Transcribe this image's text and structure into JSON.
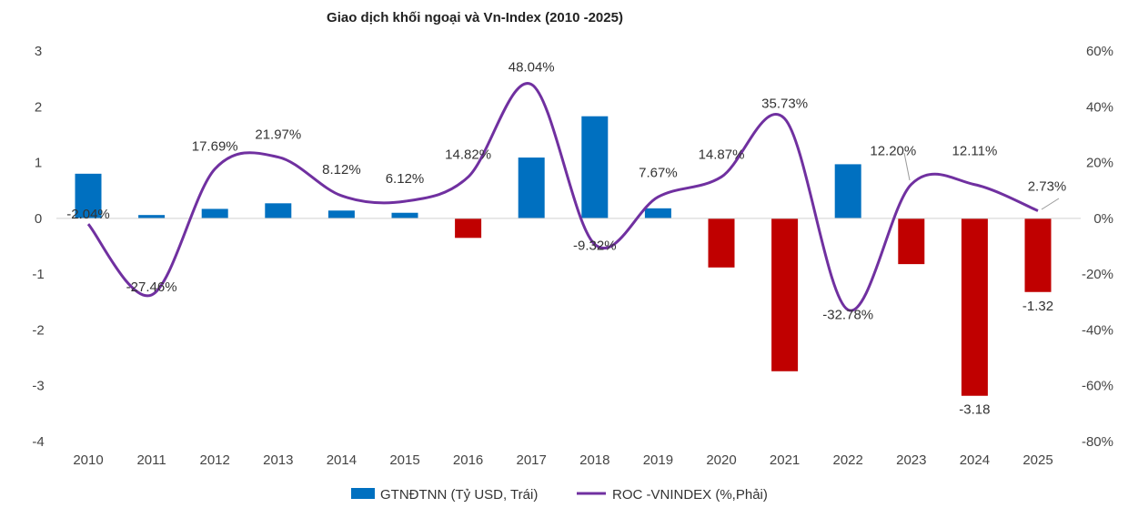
{
  "chart_data": {
    "type": "bar+line",
    "title": "Giao dịch khối ngoại và Vn-Index (2010 -2025)",
    "categories": [
      "2010",
      "2011",
      "2012",
      "2013",
      "2014",
      "2015",
      "2016",
      "2017",
      "2018",
      "2019",
      "2020",
      "2021",
      "2022",
      "2023",
      "2024",
      "2025"
    ],
    "series": [
      {
        "name": "GTNĐTNN (Tỷ USD, Trái)",
        "type": "bar",
        "axis": "left",
        "values": [
          0.8,
          0.06,
          0.17,
          0.27,
          0.14,
          0.1,
          -0.35,
          1.09,
          1.83,
          0.18,
          -0.88,
          -2.74,
          0.97,
          -0.82,
          -3.18,
          -1.32
        ],
        "labels": [
          "",
          "",
          "",
          "",
          "",
          "",
          "",
          "",
          "",
          "",
          "",
          "",
          "",
          "",
          "-3.18",
          "-1.32"
        ],
        "positive_color": "#0070C0",
        "negative_color": "#C00000"
      },
      {
        "name": "ROC -VNINDEX (%,Phải)",
        "type": "line",
        "axis": "right",
        "smooth": true,
        "values": [
          -2.04,
          -27.46,
          17.69,
          21.97,
          8.12,
          6.12,
          14.82,
          48.04,
          -9.32,
          7.67,
          14.87,
          35.73,
          -32.78,
          12.2,
          12.11,
          2.73
        ],
        "labels": [
          "-2.04%",
          "-27.46%",
          "17.69%",
          "21.97%",
          "8.12%",
          "6.12%",
          "14.82%",
          "48.04%",
          "-9.32%",
          "7.67%",
          "14.87%",
          "35.73%",
          "-32.78%",
          "12.20%",
          "12.11%",
          "2.73%"
        ],
        "color": "#7030A0"
      }
    ],
    "left_axis": {
      "range": [
        -4,
        3
      ],
      "ticks": [
        3,
        2,
        1,
        0,
        -1,
        -2,
        -3,
        -4
      ],
      "tick_labels": [
        "3",
        "2",
        "1",
        "0",
        "-1",
        "-2",
        "-3",
        "-4"
      ]
    },
    "right_axis": {
      "range": [
        -80,
        60
      ],
      "ticks": [
        60,
        40,
        20,
        0,
        -20,
        -40,
        -60,
        -80
      ],
      "tick_labels": [
        "60%",
        "40%",
        "20%",
        "0%",
        "-20%",
        "-40%",
        "-60%",
        "-80%"
      ]
    },
    "grid": false,
    "legend_position": "bottom"
  }
}
